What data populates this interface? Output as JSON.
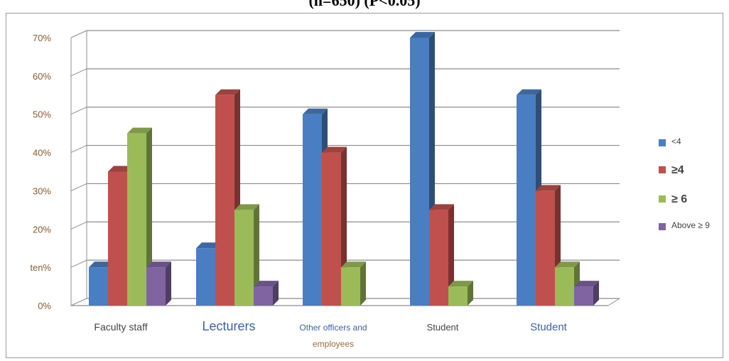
{
  "header": {
    "title_cut": "(n=650) (P<0.05)"
  },
  "chart_data": {
    "type": "bar",
    "categories": [
      "Faculty staff",
      "Lecturers",
      "Other officers and employees",
      "Student",
      "Student"
    ],
    "category_lines": [
      [
        "Faculty staff"
      ],
      [
        "Lecturers"
      ],
      [
        "Other officers and",
        "employees"
      ],
      [
        "Student"
      ],
      [
        "Student"
      ]
    ],
    "series": [
      {
        "name": "<4",
        "values": [
          10,
          15,
          50,
          70,
          55
        ],
        "color": "#4a7ec2"
      },
      {
        "name": "≥4",
        "values": [
          35,
          55,
          40,
          25,
          30
        ],
        "color": "#c0504d"
      },
      {
        "name": "≥ 6",
        "values": [
          45,
          25,
          10,
          5,
          10
        ],
        "color": "#9bbb59"
      },
      {
        "name": "Above ≥ 9",
        "values": [
          10,
          5,
          0,
          0,
          5
        ],
        "color": "#8064a2"
      }
    ],
    "yticks": [
      "0%",
      "ten%",
      "20%",
      "30%",
      "40%",
      "50%",
      "60%",
      "70%"
    ],
    "ylim": [
      0,
      70
    ],
    "grid": true,
    "legend": "right"
  }
}
